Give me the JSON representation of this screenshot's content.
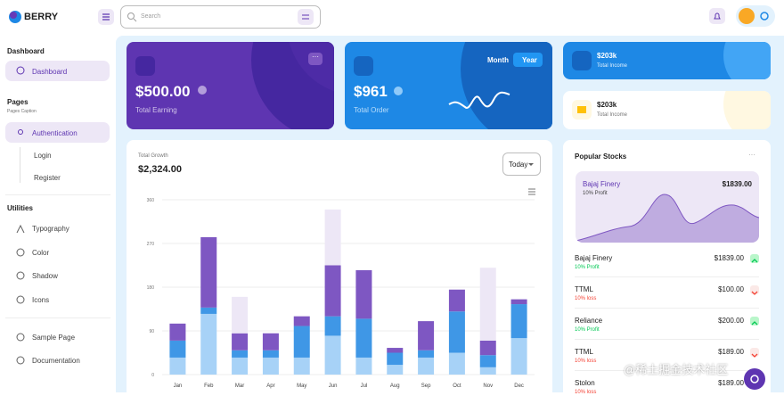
{
  "header": {
    "logo": "BERRY",
    "search_placeholder": "Search"
  },
  "sidebar": {
    "groups": [
      {
        "title": "Dashboard",
        "items": [
          {
            "label": "Dashboard"
          }
        ]
      },
      {
        "title": "Pages",
        "caption": "Pages Caption",
        "items": [
          {
            "label": "Authentication",
            "children": [
              "Login",
              "Register"
            ]
          }
        ]
      },
      {
        "title": "Utilities",
        "items": [
          {
            "label": "Typography"
          },
          {
            "label": "Color"
          },
          {
            "label": "Shadow"
          },
          {
            "label": "Icons"
          }
        ]
      },
      {
        "items": [
          {
            "label": "Sample Page"
          },
          {
            "label": "Documentation"
          }
        ]
      }
    ]
  },
  "cards": {
    "earning": {
      "value": "$500.00",
      "label": "Total Earning"
    },
    "order": {
      "value": "$961",
      "label": "Total Order",
      "toggle": [
        "Month",
        "Year"
      ]
    },
    "income": [
      {
        "value": "$203k",
        "label": "Total Income"
      },
      {
        "value": "$203k",
        "label": "Total Income"
      }
    ]
  },
  "growth": {
    "title": "Total Growth",
    "value": "$2,324.00",
    "period": "Today",
    "chart_data": {
      "type": "bar",
      "stacked": true,
      "categories": [
        "Jan",
        "Feb",
        "Mar",
        "Apr",
        "May",
        "Jun",
        "Jul",
        "Aug",
        "Sep",
        "Oct",
        "Nov",
        "Dec"
      ],
      "series": [
        {
          "color": "#a7d2f7",
          "values": [
            35,
            125,
            35,
            35,
            35,
            80,
            35,
            20,
            35,
            45,
            15,
            75
          ]
        },
        {
          "color": "#3f97e6",
          "values": [
            35,
            13,
            15,
            15,
            65,
            40,
            80,
            25,
            15,
            85,
            25,
            70
          ]
        },
        {
          "color": "#7e57c2",
          "values": [
            35,
            145,
            35,
            35,
            20,
            105,
            100,
            10,
            60,
            45,
            30,
            10
          ]
        },
        {
          "color": "#ede7f6",
          "values": [
            0,
            0,
            75,
            0,
            0,
            115,
            0,
            0,
            0,
            0,
            150,
            0
          ]
        }
      ],
      "ylim": [
        0,
        360
      ],
      "yticks": [
        0,
        90,
        180,
        270,
        360
      ],
      "grid": true
    }
  },
  "stocks": {
    "title": "Popular Stocks",
    "featured": {
      "name": "Bajaj Finery",
      "note": "10% Profit",
      "value": "$1839.00"
    },
    "rows": [
      {
        "name": "Bajaj Finery",
        "value": "$1839.00",
        "note": "10% Profit",
        "trend": "up"
      },
      {
        "name": "TTML",
        "value": "$100.00",
        "note": "10% loss",
        "trend": "down"
      },
      {
        "name": "Reliance",
        "value": "$200.00",
        "note": "10% Profit",
        "trend": "up"
      },
      {
        "name": "TTML",
        "value": "$189.00",
        "note": "10% loss",
        "trend": "down"
      },
      {
        "name": "Stolon",
        "value": "$189.00",
        "note": "10% loss",
        "trend": "down"
      }
    ]
  },
  "watermark": "@稀土掘金技术社区"
}
